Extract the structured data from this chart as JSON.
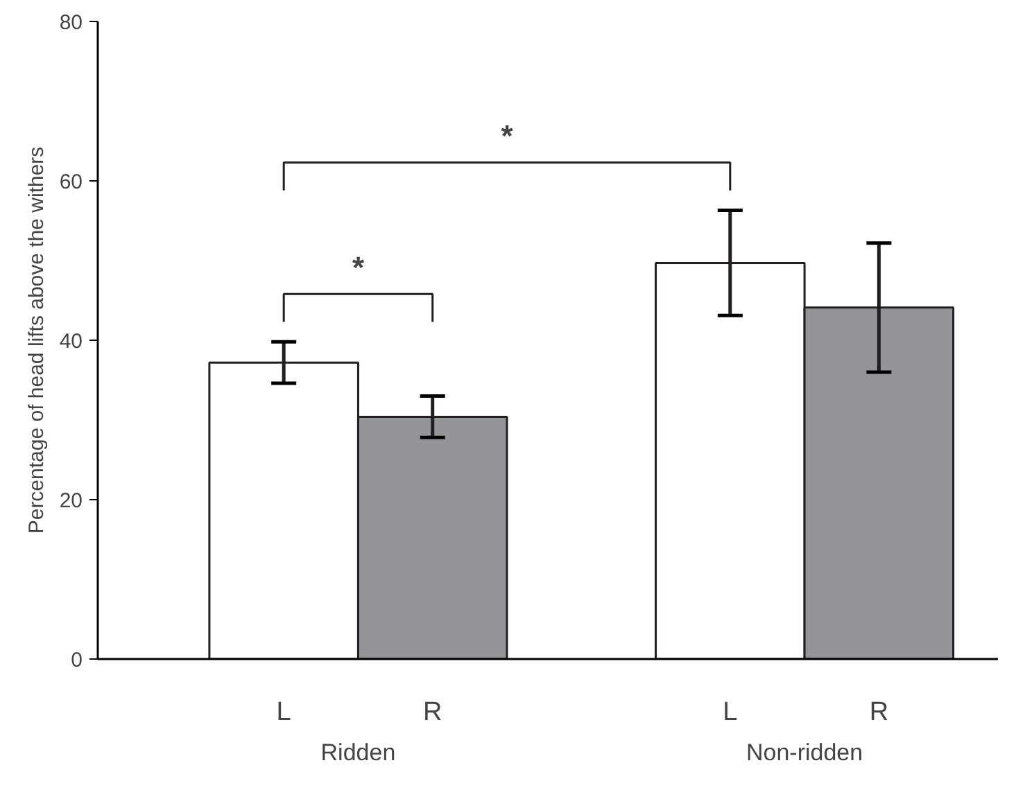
{
  "chart_data": {
    "type": "bar",
    "ylabel": "Percentage of head lifts above the withers",
    "categories": [
      "L",
      "R",
      "L",
      "R"
    ],
    "values": [
      37.2,
      30.4,
      49.7,
      44.1
    ],
    "colors": [
      "#ffffff",
      "#939598",
      "#ffffff",
      "#939598"
    ],
    "errors": [
      2.6,
      2.6,
      6.6,
      8.1
    ],
    "ylim": [
      0,
      80
    ],
    "yticks": [
      0,
      20,
      40,
      60,
      80
    ],
    "annotations": [
      "*",
      "*",
      "Ridden",
      "Non-ridden"
    ],
    "grid": false
  }
}
